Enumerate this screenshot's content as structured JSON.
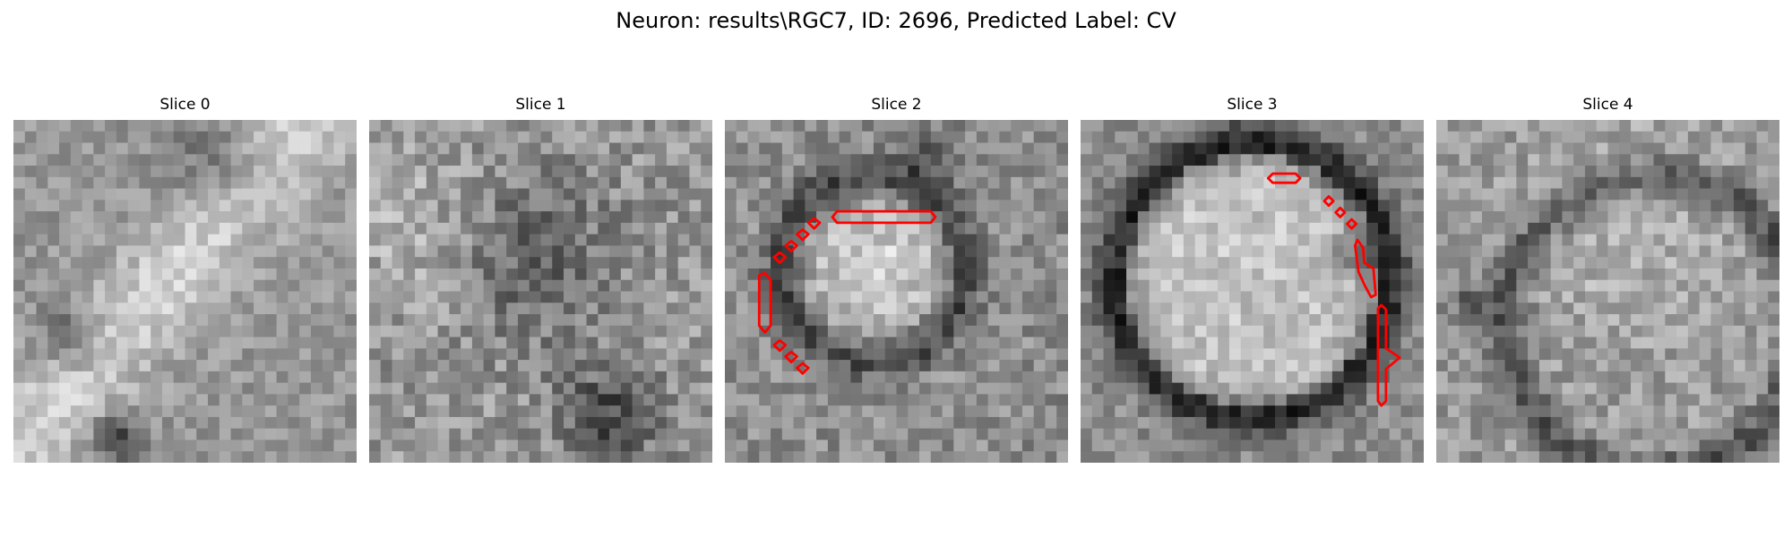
{
  "figure": {
    "title": "Neuron: results\\RGC7, ID: 2696, Predicted Label: CV",
    "contour_color": "#ff0000",
    "colormap": "gray"
  },
  "slices": [
    {
      "title": "Slice 0",
      "texture": "diagonal bright band from upper right to lower left, dark spot lower middle"
    },
    {
      "title": "Slice 1",
      "texture": "noisy mid-gray field, dark patch lower right"
    },
    {
      "title": "Slice 2",
      "texture": "bright circular cell body outlined by dark ring, red contour fragments on left side and top"
    },
    {
      "title": "Slice 3",
      "texture": "large bright circular cell body with dark ring, red contour fragments on right side and top"
    },
    {
      "title": "Slice 4",
      "texture": "faint ring on right, noisy mid-gray field"
    }
  ]
}
